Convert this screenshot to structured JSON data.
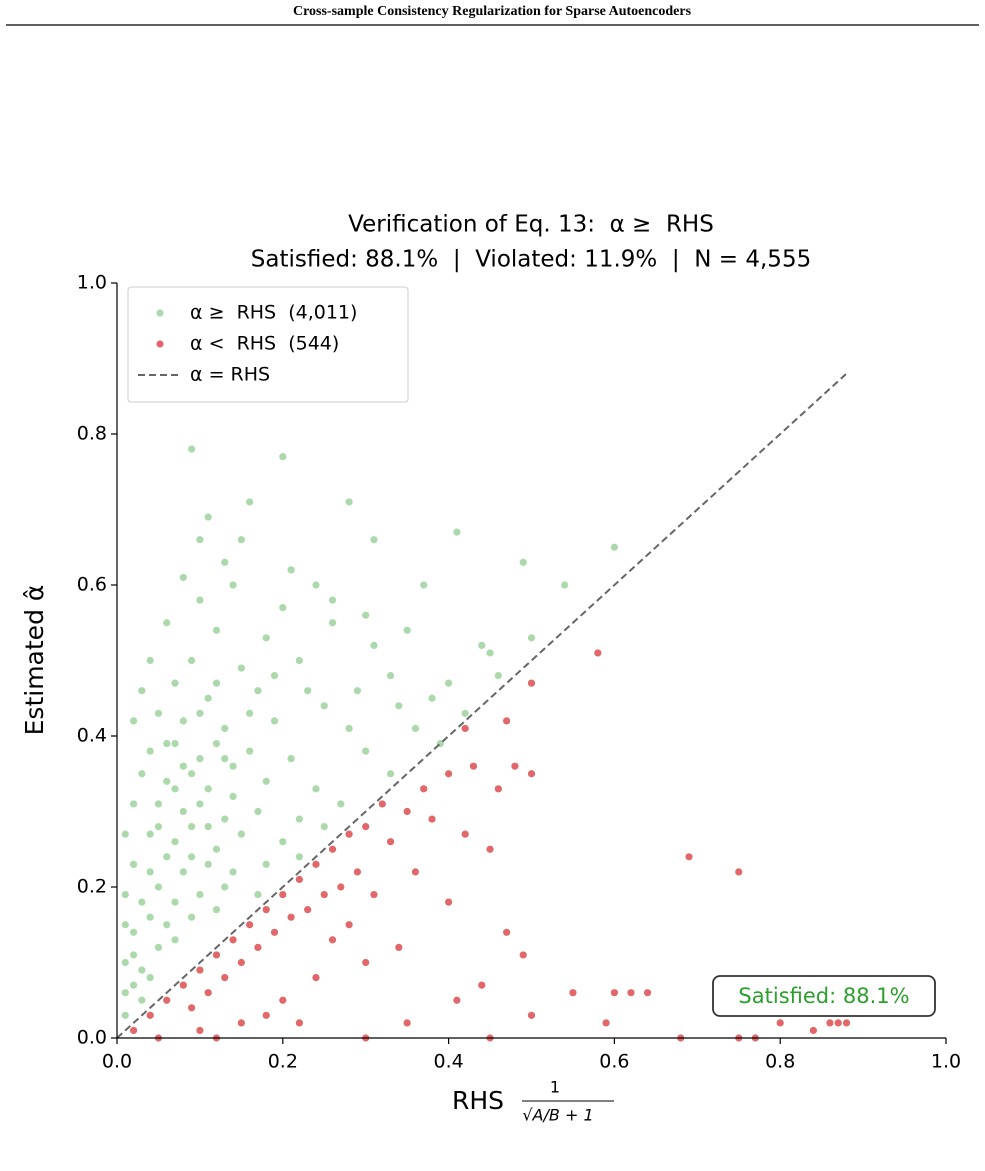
{
  "header": {
    "title": "Cross-sample Consistency Regularization for Sparse Autoencoders"
  },
  "chart_data": {
    "type": "scatter",
    "title": [
      "Verification of Eq. 13:  α ≥  RHS",
      "Satisfied: 88.1%  |  Violated: 11.9%  |  N = 4,555"
    ],
    "x_label": "RHS",
    "x_label_formula": {
      "numerator": "1",
      "denominator": "√A/B + 1"
    },
    "y_label": "Estimated α̂",
    "xlim": [
      0,
      1
    ],
    "ylim": [
      0,
      1
    ],
    "xticks": [
      {
        "value": 0,
        "label": "0.0"
      },
      0.2,
      0.4,
      0.6,
      0.8,
      {
        "value": 1,
        "label": "1.0"
      }
    ],
    "yticks": [
      {
        "value": 0,
        "label": "0.0"
      },
      0.2,
      0.4,
      0.6,
      0.8,
      {
        "value": 1,
        "label": "1.0"
      }
    ],
    "grid": false,
    "legend": "upper left",
    "series": [
      {
        "name": "α ≥  RHS  (4,011)",
        "color": "#2ca02c",
        "opacity": 0.4,
        "x": [
          0.09,
          0.2,
          0.16,
          0.28,
          0.11,
          0.41,
          0.15,
          0.31,
          0.6,
          0.49,
          0.08,
          0.14,
          0.24,
          0.37,
          0.54,
          0.1,
          0.2,
          0.3,
          0.44,
          0.5,
          0.06,
          0.12,
          0.18,
          0.26,
          0.35,
          0.04,
          0.09,
          0.15,
          0.22,
          0.33,
          0.46,
          0.03,
          0.07,
          0.11,
          0.17,
          0.25,
          0.38,
          0.42,
          0.02,
          0.05,
          0.08,
          0.13,
          0.19,
          0.28,
          0.36,
          0.04,
          0.07,
          0.1,
          0.12,
          0.16,
          0.21,
          0.3,
          0.39,
          0.03,
          0.06,
          0.09,
          0.11,
          0.14,
          0.18,
          0.24,
          0.33,
          0.02,
          0.05,
          0.08,
          0.1,
          0.13,
          0.17,
          0.22,
          0.27,
          0.01,
          0.04,
          0.07,
          0.09,
          0.12,
          0.15,
          0.2,
          0.25,
          0.02,
          0.04,
          0.06,
          0.08,
          0.11,
          0.14,
          0.18,
          0.22,
          0.01,
          0.03,
          0.05,
          0.07,
          0.1,
          0.13,
          0.17,
          0.01,
          0.02,
          0.04,
          0.06,
          0.09,
          0.12,
          0.01,
          0.02,
          0.03,
          0.05,
          0.07,
          0.01,
          0.02,
          0.04,
          0.01,
          0.03,
          0.1,
          0.12,
          0.06,
          0.14,
          0.08,
          0.11,
          0.16,
          0.05,
          0.13,
          0.09,
          0.07,
          0.19,
          0.23,
          0.29,
          0.34,
          0.4,
          0.45,
          0.31,
          0.26,
          0.21,
          0.13,
          0.1
        ],
        "y": [
          0.78,
          0.77,
          0.71,
          0.71,
          0.69,
          0.67,
          0.66,
          0.66,
          0.65,
          0.63,
          0.61,
          0.6,
          0.6,
          0.6,
          0.6,
          0.58,
          0.57,
          0.56,
          0.52,
          0.53,
          0.55,
          0.54,
          0.53,
          0.55,
          0.54,
          0.5,
          0.5,
          0.49,
          0.5,
          0.48,
          0.48,
          0.46,
          0.47,
          0.45,
          0.46,
          0.44,
          0.45,
          0.43,
          0.42,
          0.43,
          0.42,
          0.41,
          0.42,
          0.41,
          0.41,
          0.38,
          0.39,
          0.37,
          0.39,
          0.38,
          0.37,
          0.38,
          0.39,
          0.35,
          0.34,
          0.35,
          0.33,
          0.36,
          0.34,
          0.33,
          0.35,
          0.31,
          0.31,
          0.3,
          0.31,
          0.29,
          0.3,
          0.29,
          0.31,
          0.27,
          0.27,
          0.26,
          0.28,
          0.25,
          0.27,
          0.26,
          0.28,
          0.23,
          0.22,
          0.24,
          0.22,
          0.23,
          0.22,
          0.23,
          0.24,
          0.19,
          0.18,
          0.2,
          0.18,
          0.19,
          0.2,
          0.19,
          0.15,
          0.14,
          0.16,
          0.15,
          0.16,
          0.17,
          0.1,
          0.11,
          0.09,
          0.12,
          0.13,
          0.06,
          0.07,
          0.08,
          0.03,
          0.05,
          0.43,
          0.47,
          0.39,
          0.32,
          0.36,
          0.28,
          0.43,
          0.28,
          0.37,
          0.24,
          0.33,
          0.48,
          0.46,
          0.46,
          0.44,
          0.47,
          0.51,
          0.52,
          0.58,
          0.62,
          0.63,
          0.66
        ]
      },
      {
        "name": "α <  RHS  (544)",
        "color": "#d62728",
        "opacity": 0.7,
        "x": [
          0.58,
          0.5,
          0.47,
          0.42,
          0.69,
          0.75,
          0.48,
          0.5,
          0.43,
          0.4,
          0.37,
          0.35,
          0.32,
          0.3,
          0.28,
          0.26,
          0.24,
          0.22,
          0.2,
          0.18,
          0.16,
          0.14,
          0.12,
          0.1,
          0.08,
          0.06,
          0.04,
          0.02,
          0.33,
          0.29,
          0.27,
          0.25,
          0.23,
          0.21,
          0.19,
          0.17,
          0.15,
          0.13,
          0.11,
          0.09,
          0.36,
          0.38,
          0.4,
          0.45,
          0.47,
          0.49,
          0.44,
          0.41,
          0.3,
          0.28,
          0.24,
          0.2,
          0.18,
          0.15,
          0.1,
          0.35,
          0.5,
          0.55,
          0.6,
          0.62,
          0.64,
          0.59,
          0.68,
          0.75,
          0.8,
          0.84,
          0.86,
          0.87,
          0.88,
          0.77,
          0.45,
          0.3,
          0.05,
          0.12,
          0.22,
          0.34,
          0.31,
          0.26,
          0.42,
          0.46
        ],
        "y": [
          0.51,
          0.47,
          0.42,
          0.41,
          0.24,
          0.22,
          0.36,
          0.35,
          0.36,
          0.35,
          0.33,
          0.3,
          0.31,
          0.28,
          0.27,
          0.25,
          0.23,
          0.21,
          0.19,
          0.17,
          0.15,
          0.13,
          0.11,
          0.09,
          0.07,
          0.05,
          0.03,
          0.01,
          0.26,
          0.22,
          0.2,
          0.19,
          0.17,
          0.16,
          0.14,
          0.12,
          0.1,
          0.08,
          0.06,
          0.04,
          0.22,
          0.29,
          0.18,
          0.25,
          0.14,
          0.11,
          0.07,
          0.05,
          0.1,
          0.15,
          0.08,
          0.05,
          0.03,
          0.02,
          0.01,
          0.02,
          0.03,
          0.06,
          0.06,
          0.06,
          0.06,
          0.02,
          0,
          0,
          0.02,
          0.01,
          0.02,
          0.02,
          0.02,
          0,
          0,
          0,
          0,
          0,
          0.02,
          0.12,
          0.19,
          0.13,
          0.27,
          0.33
        ]
      }
    ],
    "reference_line": {
      "name": "α = RHS",
      "color": "#666666",
      "x": [
        0,
        0.88
      ],
      "y": [
        0,
        0.88
      ]
    },
    "annotation": {
      "text": "Satisfied: 88.1%",
      "color": "#2ca02c"
    }
  }
}
